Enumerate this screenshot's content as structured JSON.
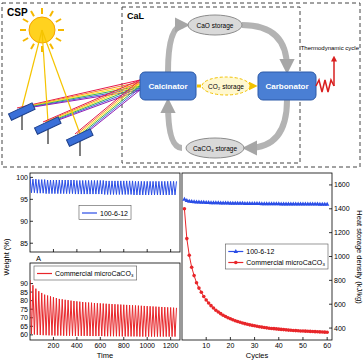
{
  "diagram": {
    "csp": "CSP",
    "cal": "CaL",
    "calcinator": "Calcinator",
    "carbonator": "Carbonator",
    "cao_storage": "CaO storage",
    "co2_storage": "CO₂ storage",
    "caco3_storage": "CaCO₃ storage",
    "thermodynamic_cycle": "Thermodynamic cycle"
  },
  "chart_data": [
    {
      "type": "line",
      "x_label": "A",
      "y_label": "Weight (%)",
      "x": [
        0,
        12.5,
        25,
        37.5,
        50,
        62.5,
        75,
        87.5,
        100,
        112.5,
        125,
        137.5,
        150,
        162.5,
        175,
        187.5,
        200,
        212.5,
        225,
        237.5,
        250,
        262.5,
        275,
        287.5,
        300,
        312.5,
        325,
        337.5,
        350,
        362.5,
        375,
        387.5,
        400,
        412.5,
        425,
        437.5,
        450,
        462.5,
        475,
        487.5,
        500,
        512.5,
        525,
        537.5,
        550,
        562.5,
        575,
        587.5,
        600,
        612.5,
        625,
        637.5,
        650,
        662.5,
        675,
        687.5,
        700,
        712.5,
        725,
        737.5,
        750,
        762.5,
        775,
        787.5,
        800,
        812.5,
        825,
        837.5,
        850,
        862.5,
        875,
        887.5,
        900,
        912.5,
        925,
        937.5,
        950,
        962.5,
        975,
        987.5,
        1000,
        1012.5,
        1025,
        1037.5,
        1050,
        1062.5,
        1075,
        1087.5,
        1100,
        1112.5,
        1125,
        1137.5,
        1150,
        1162.5,
        1175,
        1187.5,
        1200,
        1212.5,
        1225,
        1237.5,
        1250
      ],
      "xlim": [
        0,
        1280
      ],
      "xticks": [
        200,
        400,
        600,
        800,
        1000,
        1200
      ],
      "ylim": [
        83,
        101
      ],
      "yticks": [
        85,
        90,
        95,
        100
      ],
      "tick_labels": "y",
      "legend": "center",
      "series": [
        {
          "name": "100-6-12",
          "color": "#2b4ee6",
          "values": [
            100,
            96.5,
            99.6,
            96.5,
            99.6,
            96.4,
            99.5,
            96.4,
            99.5,
            96.4,
            99.5,
            96.3,
            99.4,
            96.3,
            99.4,
            96.3,
            99.4,
            96.3,
            99.4,
            96.3,
            99.4,
            96.3,
            99.4,
            96.3,
            99.4,
            96.3,
            99.4,
            96.3,
            99.4,
            96.3,
            99.4,
            96.2,
            99.3,
            96.2,
            99.3,
            96.2,
            99.3,
            96.2,
            99.3,
            96.2,
            99.3,
            96.2,
            99.3,
            96.2,
            99.3,
            96.2,
            99.3,
            96.2,
            99.3,
            96.2,
            99.3,
            96.1,
            99.2,
            96.1,
            99.2,
            96.1,
            99.2,
            96.1,
            99.2,
            96.1,
            99.2,
            96.1,
            99.2,
            96.1,
            99.2,
            96.1,
            99.2,
            96.1,
            99.2,
            96.1,
            99.2,
            96,
            99.1,
            96,
            99.1,
            96,
            99.1,
            96,
            99.1,
            96,
            99.1,
            96,
            99.1,
            96,
            99.1,
            96,
            99.1,
            96,
            99.1,
            96,
            99.1,
            96,
            99.1,
            96,
            99.1,
            96,
            99.1,
            96,
            99.1,
            96,
            99.1
          ]
        }
      ]
    },
    {
      "type": "line",
      "x_label": "Time",
      "x": [
        0,
        12.5,
        25,
        37.5,
        50,
        62.5,
        75,
        87.5,
        100,
        112.5,
        125,
        137.5,
        150,
        162.5,
        175,
        187.5,
        200,
        212.5,
        225,
        237.5,
        250,
        262.5,
        275,
        287.5,
        300,
        312.5,
        325,
        337.5,
        350,
        362.5,
        375,
        387.5,
        400,
        412.5,
        425,
        437.5,
        450,
        462.5,
        475,
        487.5,
        500,
        512.5,
        525,
        537.5,
        550,
        562.5,
        575,
        587.5,
        600,
        612.5,
        625,
        637.5,
        650,
        662.5,
        675,
        687.5,
        700,
        712.5,
        725,
        737.5,
        750,
        762.5,
        775,
        787.5,
        800,
        812.5,
        825,
        837.5,
        850,
        862.5,
        875,
        887.5,
        900,
        912.5,
        925,
        937.5,
        950,
        962.5,
        975,
        987.5,
        1000,
        1012.5,
        1025,
        1037.5,
        1050,
        1062.5,
        1075,
        1087.5,
        1100,
        1112.5,
        1125,
        1137.5,
        1150,
        1162.5,
        1175,
        1187.5,
        1200,
        1212.5,
        1225,
        1237.5,
        1250
      ],
      "xlim": [
        0,
        1280
      ],
      "xticks": [
        200,
        400,
        600,
        800,
        1000,
        1200
      ],
      "ylim": [
        57,
        102
      ],
      "yticks": [
        60,
        65,
        70,
        75,
        80,
        85,
        90
      ],
      "legend": "upper left",
      "series": [
        {
          "name": "Commercial microCaCO₃",
          "color": "#e8262a",
          "values": [
            92,
            60.5,
            89,
            60.2,
            87,
            60,
            85.5,
            59.9,
            84.5,
            59.8,
            83.5,
            59.8,
            83,
            59.7,
            82.5,
            59.7,
            82,
            59.6,
            81.5,
            59.6,
            81,
            59.6,
            80.8,
            59.5,
            80.5,
            59.5,
            80.3,
            59.5,
            80,
            59.5,
            79.8,
            59.4,
            79.6,
            59.4,
            79.4,
            59.4,
            79.2,
            59.4,
            79,
            59.4,
            78.9,
            59.3,
            78.8,
            59.3,
            78.6,
            59.3,
            78.5,
            59.3,
            78.4,
            59.3,
            78.3,
            59.2,
            78.2,
            59.2,
            78.1,
            59.2,
            78,
            59.2,
            77.9,
            59.2,
            77.8,
            59.2,
            77.7,
            59.1,
            77.6,
            59.1,
            77.5,
            59.1,
            77.4,
            59.1,
            77.3,
            59.1,
            77.2,
            59.1,
            77.1,
            59,
            77,
            59,
            76.9,
            59,
            76.8,
            59,
            76.7,
            59,
            76.6,
            59,
            76.5,
            59,
            76.4,
            59,
            76.3,
            59,
            76.2,
            59,
            76.1,
            59,
            76,
            59,
            75.9,
            59,
            75.8
          ]
        }
      ]
    },
    {
      "type": "line",
      "x_label": "Cycles",
      "y_label": "Heat storage density (kJ/kg)",
      "x": [
        1,
        2,
        3,
        4,
        5,
        6,
        7,
        8,
        9,
        10,
        11,
        12,
        13,
        14,
        15,
        16,
        17,
        18,
        19,
        20,
        21,
        22,
        23,
        24,
        25,
        26,
        27,
        28,
        29,
        30,
        31,
        32,
        33,
        34,
        35,
        36,
        37,
        38,
        39,
        40,
        41,
        42,
        43,
        44,
        45,
        46,
        47,
        48,
        49,
        50,
        51,
        52,
        53,
        54,
        55,
        56,
        57,
        58,
        59,
        60
      ],
      "xlim": [
        0,
        62
      ],
      "xticks": [
        10,
        20,
        30,
        40,
        50,
        60
      ],
      "y2lim": [
        300,
        1700
      ],
      "y2ticks": [
        400,
        600,
        800,
        1000,
        1200,
        1400,
        1600
      ],
      "legend": "center right",
      "series": [
        {
          "name": "100-6-12",
          "color": "#2b4ee6",
          "axis": "y2",
          "marker": "triangle",
          "values": [
            1480,
            1470,
            1465,
            1462,
            1460,
            1458,
            1457,
            1456,
            1455,
            1454,
            1453,
            1452,
            1452,
            1451,
            1451,
            1450,
            1450,
            1449,
            1449,
            1448,
            1448,
            1448,
            1447,
            1447,
            1447,
            1446,
            1446,
            1446,
            1445,
            1445,
            1445,
            1445,
            1444,
            1444,
            1444,
            1444,
            1443,
            1443,
            1443,
            1443,
            1442,
            1442,
            1442,
            1442,
            1442,
            1441,
            1441,
            1441,
            1441,
            1441,
            1440,
            1440,
            1440,
            1440,
            1440,
            1440,
            1439,
            1439,
            1439,
            1439
          ]
        },
        {
          "name": "Commercial microCaCO₃",
          "color": "#e8262a",
          "axis": "y2",
          "marker": "circle",
          "values": [
            1400,
            1150,
            1010,
            910,
            840,
            780,
            735,
            700,
            665,
            635,
            610,
            588,
            568,
            550,
            535,
            521,
            508,
            497,
            487,
            478,
            470,
            462,
            455,
            449,
            443,
            437,
            432,
            427,
            423,
            419,
            415,
            411,
            408,
            405,
            402,
            399,
            397,
            395,
            393,
            391,
            389,
            387,
            385,
            383,
            382,
            380,
            379,
            377,
            376,
            375,
            374,
            373,
            372,
            371,
            370,
            369,
            368,
            367,
            366,
            365
          ]
        }
      ]
    }
  ]
}
